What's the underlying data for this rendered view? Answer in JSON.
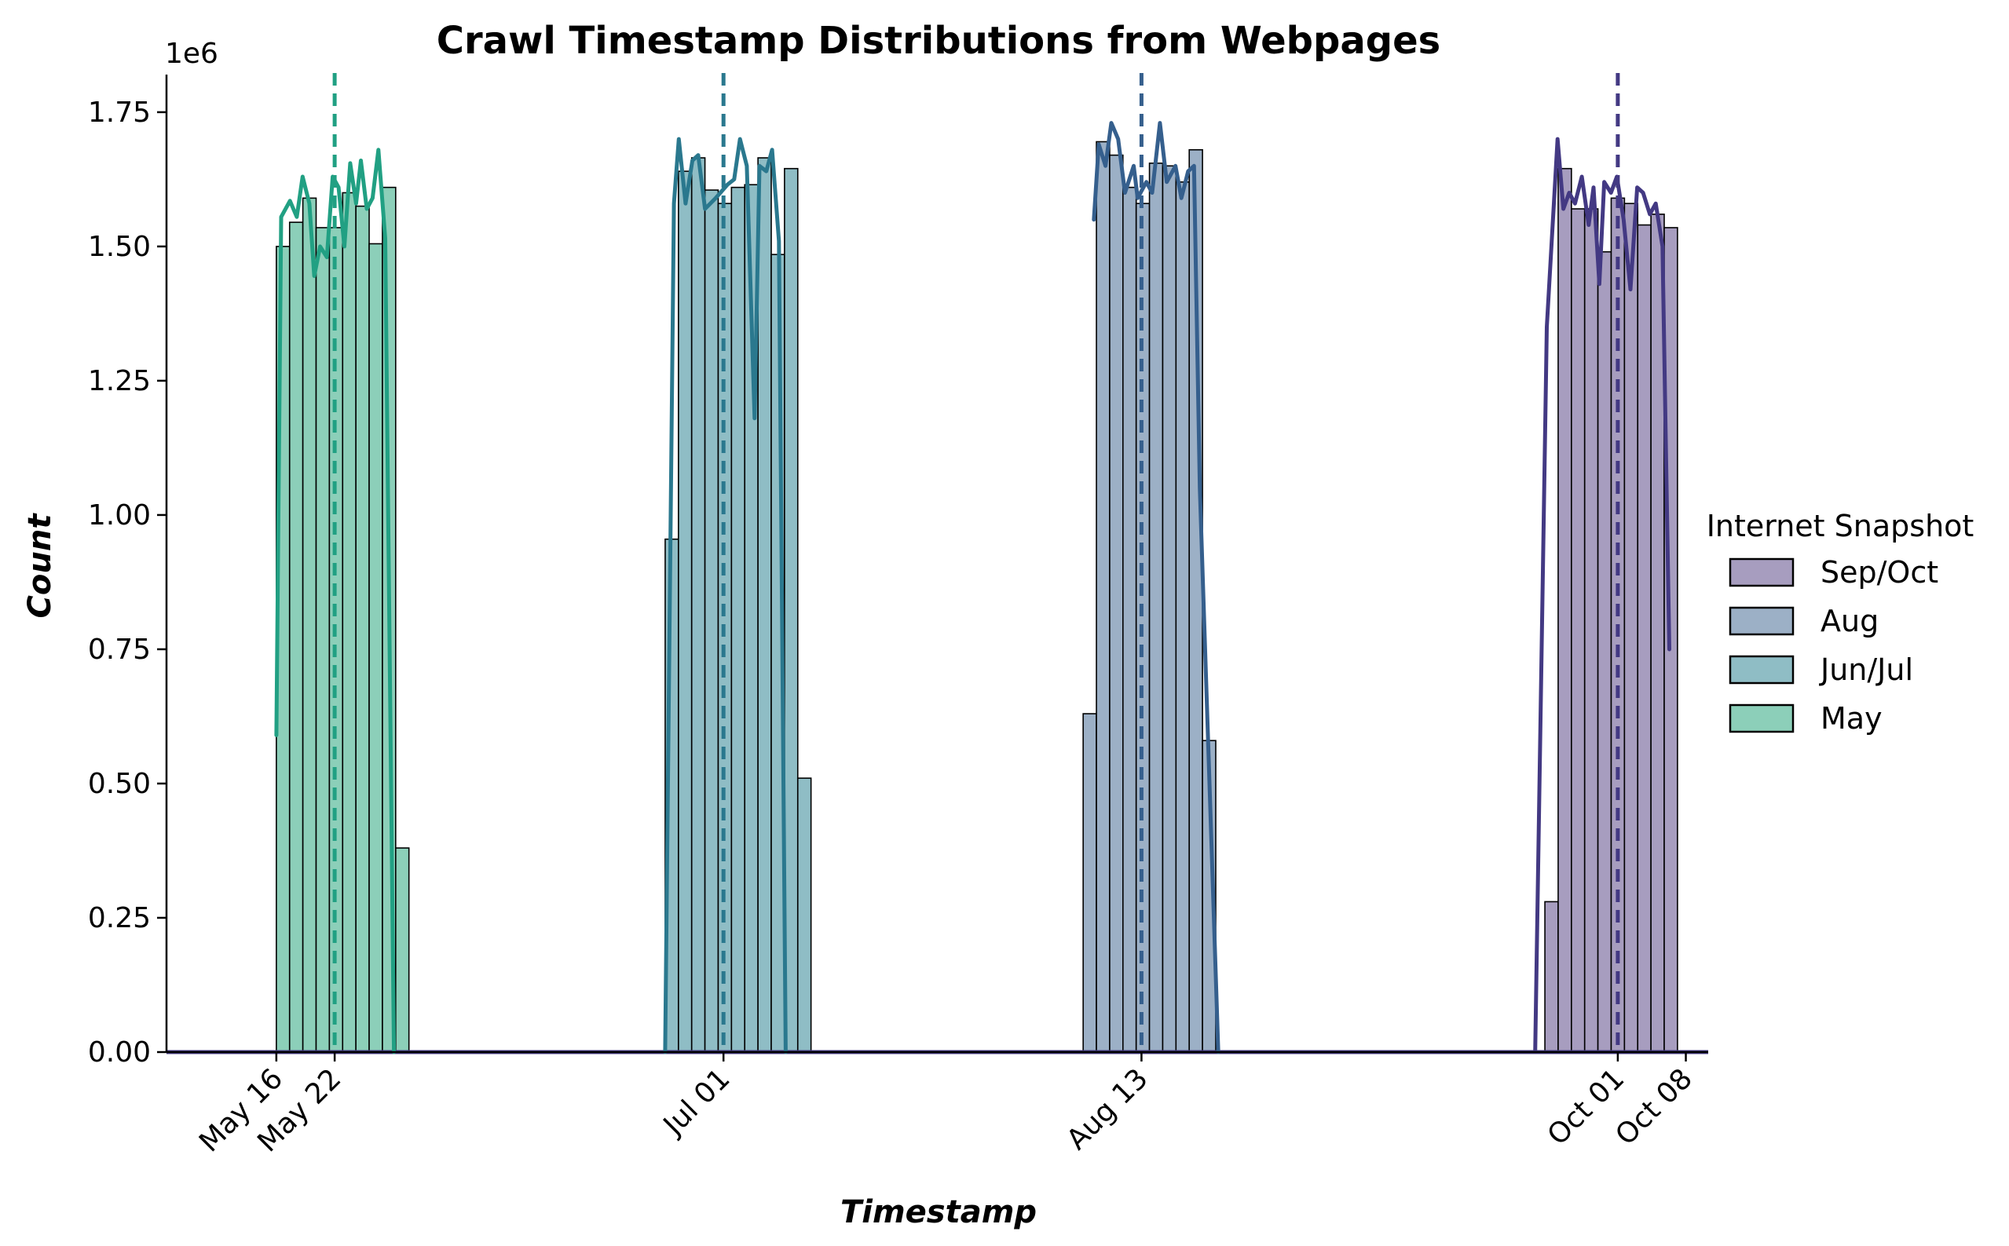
{
  "chart_data": {
    "type": "histogram",
    "title": "Crawl Timestamp Distributions from Webpages",
    "xlabel": "Timestamp",
    "ylabel": "Count",
    "y_offset_label": "1e6",
    "ylim": [
      0,
      1820000
    ],
    "xlim": [
      -11.3,
      147.3
    ],
    "x_reference": "May 16",
    "yticks": [
      0,
      250000,
      500000,
      750000,
      1000000,
      1250000,
      1500000,
      1750000
    ],
    "ytick_labels": [
      "0.00",
      "0.25",
      "0.50",
      "0.75",
      "1.00",
      "1.25",
      "1.50",
      "1.75"
    ],
    "xticks": [
      {
        "day": 0,
        "label": "May 16"
      },
      {
        "day": 6,
        "label": "May 22"
      },
      {
        "day": 46,
        "label": "Jul 01"
      },
      {
        "day": 89,
        "label": "Aug 13"
      },
      {
        "day": 138,
        "label": "Oct 01"
      },
      {
        "day": 145,
        "label": "Oct 08"
      }
    ],
    "legend": {
      "title": "Internet Snapshot",
      "placement": "right",
      "entries": [
        "Sep/Oct",
        "Aug",
        "Jun/Jul",
        "May"
      ]
    },
    "series": [
      {
        "name": "May",
        "color": "#21a083",
        "bar_fill": "#8ccfb9",
        "marker_day": 6,
        "bin_start_day": 0,
        "bin_width_days": 1.364,
        "values": [
          1500000,
          1545000,
          1590000,
          1535000,
          1535000,
          1600000,
          1575000,
          1505000,
          1610000,
          380000
        ],
        "kde": [
          [
            0,
            590000
          ],
          [
            0.5,
            1555000
          ],
          [
            1.4,
            1585000
          ],
          [
            2.1,
            1555000
          ],
          [
            2.7,
            1630000
          ],
          [
            3.4,
            1580000
          ],
          [
            3.9,
            1445000
          ],
          [
            4.5,
            1500000
          ],
          [
            5.2,
            1480000
          ],
          [
            5.8,
            1630000
          ],
          [
            6.4,
            1610000
          ],
          [
            7.0,
            1500000
          ],
          [
            7.6,
            1655000
          ],
          [
            8.2,
            1580000
          ],
          [
            8.7,
            1660000
          ],
          [
            9.3,
            1570000
          ],
          [
            9.9,
            1590000
          ],
          [
            10.5,
            1680000
          ],
          [
            11.2,
            1515000
          ],
          [
            12.1,
            0
          ]
        ]
      },
      {
        "name": "Jun/Jul",
        "color": "#2a788e",
        "bar_fill": "#8fbdc5",
        "marker_day": 46,
        "bin_start_day": 40,
        "bin_width_days": 1.364,
        "values": [
          955000,
          1640000,
          1665000,
          1605000,
          1580000,
          1610000,
          1615000,
          1665000,
          1485000,
          1645000,
          510000
        ],
        "kde": [
          [
            40,
            0
          ],
          [
            40.9,
            1580000
          ],
          [
            41.4,
            1700000
          ],
          [
            42.1,
            1580000
          ],
          [
            42.8,
            1660000
          ],
          [
            43.4,
            1670000
          ],
          [
            44.1,
            1570000
          ],
          [
            45.2,
            1590000
          ],
          [
            46.4,
            1615000
          ],
          [
            47.1,
            1625000
          ],
          [
            47.7,
            1700000
          ],
          [
            48.4,
            1650000
          ],
          [
            49.2,
            1180000
          ],
          [
            49.7,
            1650000
          ],
          [
            50.4,
            1640000
          ],
          [
            51.0,
            1680000
          ],
          [
            51.7,
            1510000
          ],
          [
            52.4,
            0
          ]
        ]
      },
      {
        "name": "Aug",
        "color": "#355f8d",
        "bar_fill": "#9cb0c6",
        "marker_day": 89,
        "bin_start_day": 83,
        "bin_width_days": 1.364,
        "values": [
          630000,
          1695000,
          1670000,
          1610000,
          1580000,
          1655000,
          1650000,
          1620000,
          1680000,
          580000
        ],
        "kde": [
          [
            84.1,
            1550000
          ],
          [
            84.6,
            1690000
          ],
          [
            85.3,
            1650000
          ],
          [
            85.9,
            1730000
          ],
          [
            86.6,
            1700000
          ],
          [
            87.3,
            1600000
          ],
          [
            88.2,
            1650000
          ],
          [
            88.6,
            1590000
          ],
          [
            89.5,
            1620000
          ],
          [
            90.1,
            1600000
          ],
          [
            90.9,
            1730000
          ],
          [
            91.6,
            1620000
          ],
          [
            92.5,
            1650000
          ],
          [
            93.1,
            1590000
          ],
          [
            93.8,
            1640000
          ],
          [
            94.4,
            1650000
          ],
          [
            95.0,
            1050000
          ],
          [
            96.9,
            0
          ]
        ]
      },
      {
        "name": "Sep/Oct",
        "color": "#433983",
        "bar_fill": "#a79dbf",
        "marker_day": 138,
        "bin_start_day": 130.5,
        "bin_width_days": 1.364,
        "values": [
          280000,
          1645000,
          1570000,
          1570000,
          1490000,
          1590000,
          1580000,
          1540000,
          1560000,
          1535000
        ],
        "kde": [
          [
            129.5,
            0
          ],
          [
            130.7,
            1350000
          ],
          [
            131.8,
            1700000
          ],
          [
            132.4,
            1570000
          ],
          [
            133.0,
            1600000
          ],
          [
            133.6,
            1580000
          ],
          [
            134.3,
            1630000
          ],
          [
            135.0,
            1540000
          ],
          [
            135.5,
            1610000
          ],
          [
            136.1,
            1430000
          ],
          [
            136.6,
            1620000
          ],
          [
            137.3,
            1600000
          ],
          [
            137.9,
            1630000
          ],
          [
            138.6,
            1550000
          ],
          [
            139.3,
            1420000
          ],
          [
            140.0,
            1610000
          ],
          [
            140.6,
            1600000
          ],
          [
            141.3,
            1560000
          ],
          [
            141.9,
            1580000
          ],
          [
            142.6,
            1500000
          ],
          [
            143.3,
            750000
          ]
        ]
      }
    ]
  }
}
